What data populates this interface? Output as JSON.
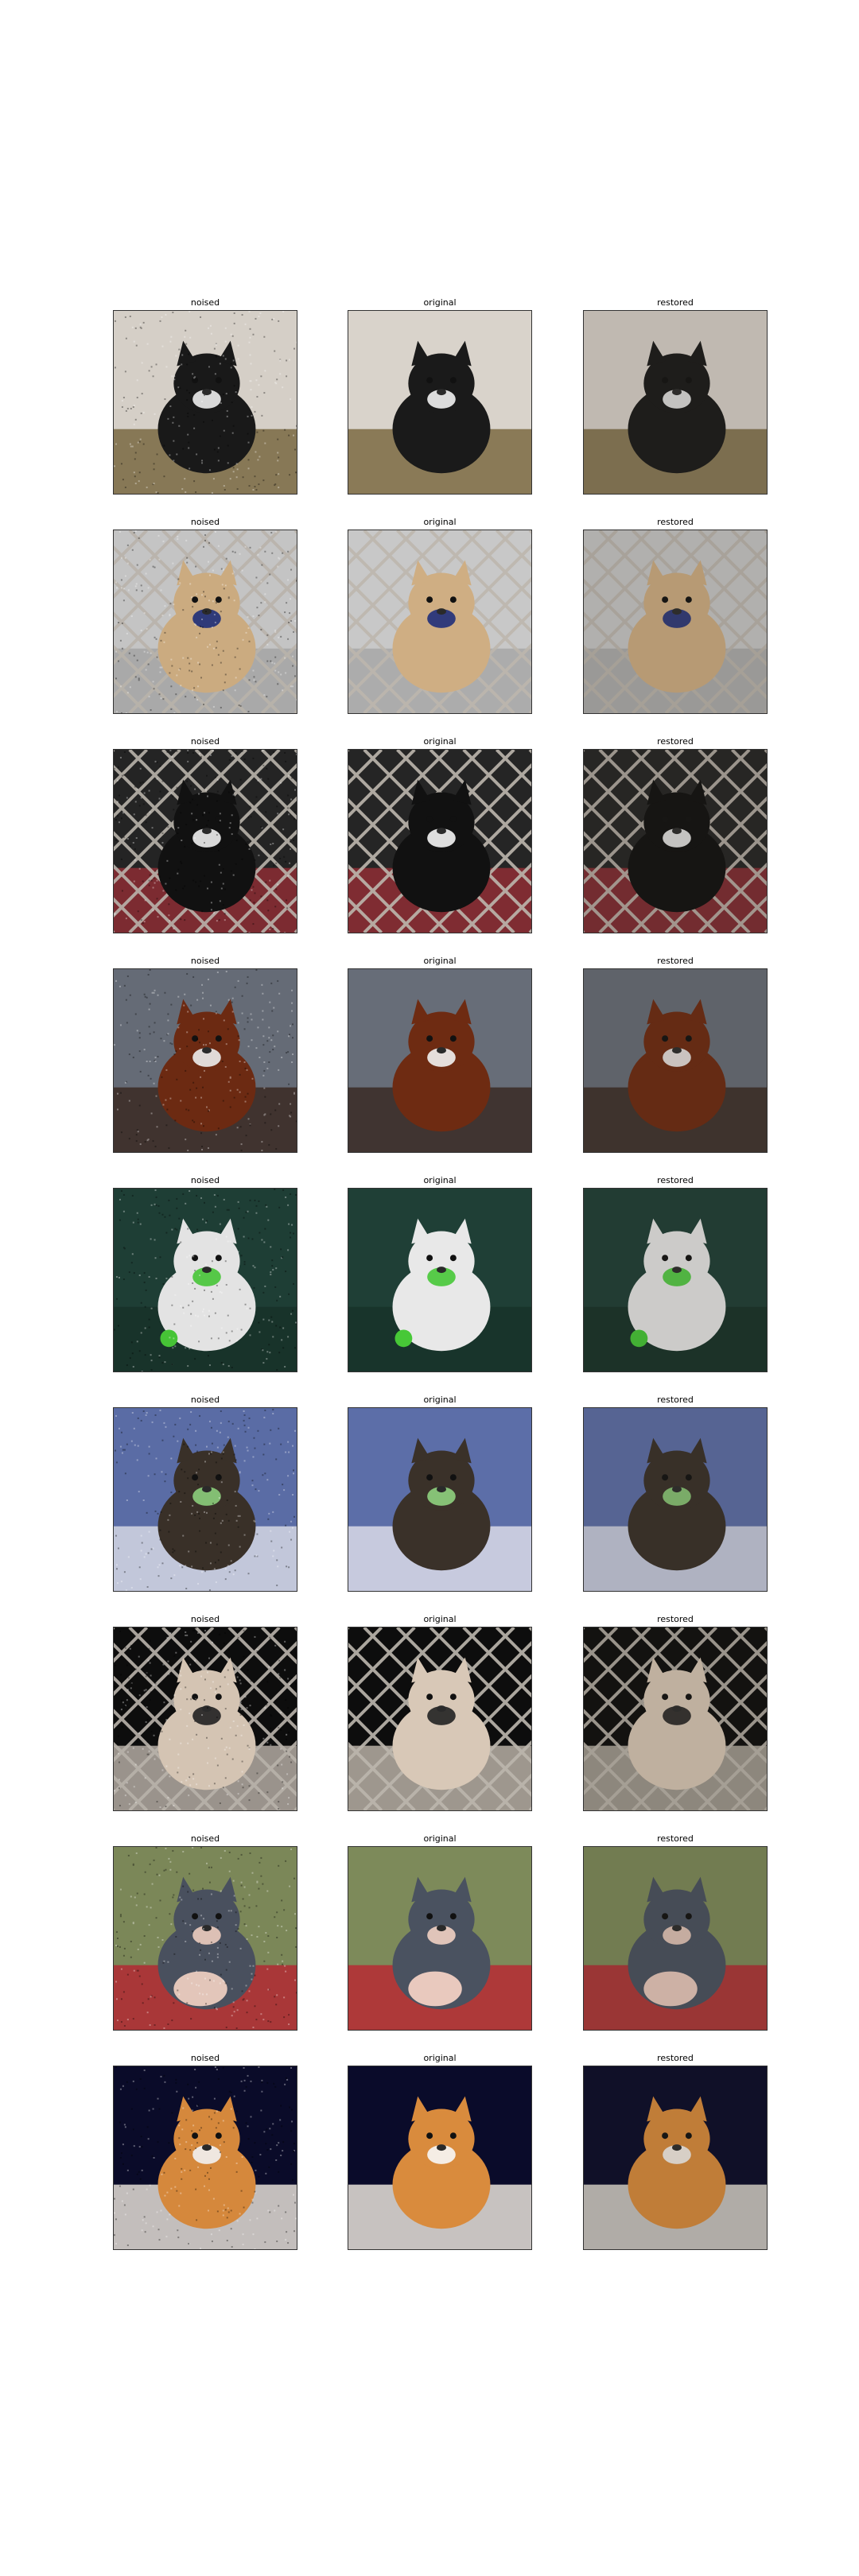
{
  "figure": {
    "rows": [
      {
        "subject": "boston-terrier-dog",
        "panels": [
          {
            "title": "noised",
            "variant": "noised"
          },
          {
            "title": "original",
            "variant": "original"
          },
          {
            "title": "restored",
            "variant": "restored"
          }
        ],
        "colors": {
          "bg": "#d9d3cb",
          "mid": "#7b6a43",
          "main": "#1a1a1a",
          "accent": "#f2f2f2"
        }
      },
      {
        "subject": "dog-behind-chain-fence",
        "panels": [
          {
            "title": "noised",
            "variant": "noised"
          },
          {
            "title": "original",
            "variant": "original"
          },
          {
            "title": "restored",
            "variant": "restored"
          }
        ],
        "colors": {
          "bg": "#c8c8c8",
          "mid": "#a7a7a7",
          "main": "#cfae83",
          "accent": "#1f2f7a"
        }
      },
      {
        "subject": "black-white-cat-in-cage",
        "panels": [
          {
            "title": "noised",
            "variant": "noised"
          },
          {
            "title": "original",
            "variant": "original"
          },
          {
            "title": "restored",
            "variant": "restored"
          }
        ],
        "colors": {
          "bg": "#252525",
          "mid": "#8f2e35",
          "main": "#111111",
          "accent": "#f5f5f5"
        }
      },
      {
        "subject": "brown-labrador-dog",
        "panels": [
          {
            "title": "noised",
            "variant": "noised"
          },
          {
            "title": "original",
            "variant": "original"
          },
          {
            "title": "restored",
            "variant": "restored"
          }
        ],
        "colors": {
          "bg": "#676d78",
          "mid": "#3a2a24",
          "main": "#6e2b12",
          "accent": "#f2f2f2"
        }
      },
      {
        "subject": "white-persian-cat",
        "panels": [
          {
            "title": "noised",
            "variant": "noised"
          },
          {
            "title": "original",
            "variant": "original"
          },
          {
            "title": "restored",
            "variant": "restored"
          }
        ],
        "colors": {
          "bg": "#1f3f36",
          "mid": "#173229",
          "main": "#e8e8e8",
          "accent": "#47c837"
        }
      },
      {
        "subject": "tabby-cat-in-bed",
        "panels": [
          {
            "title": "noised",
            "variant": "noised"
          },
          {
            "title": "original",
            "variant": "original"
          },
          {
            "title": "restored",
            "variant": "restored"
          }
        ],
        "colors": {
          "bg": "#5c6ea8",
          "mid": "#d9dbe8",
          "main": "#3a3129",
          "accent": "#8fd27e"
        }
      },
      {
        "subject": "dog-nose-through-fence",
        "panels": [
          {
            "title": "noised",
            "variant": "noised"
          },
          {
            "title": "original",
            "variant": "original"
          },
          {
            "title": "restored",
            "variant": "restored"
          }
        ],
        "colors": {
          "bg": "#0d0d0d",
          "mid": "#b8b0a6",
          "main": "#d8c8b7",
          "accent": "#222222"
        }
      },
      {
        "subject": "chihuahua-held-by-hands",
        "panels": [
          {
            "title": "noised",
            "variant": "noised"
          },
          {
            "title": "original",
            "variant": "original"
          },
          {
            "title": "restored",
            "variant": "restored"
          }
        ],
        "colors": {
          "bg": "#7d8a5a",
          "mid": "#b62a34",
          "main": "#4a5260",
          "accent": "#f1d0c3"
        }
      },
      {
        "subject": "orange-kitten",
        "panels": [
          {
            "title": "noised",
            "variant": "noised"
          },
          {
            "title": "original",
            "variant": "original"
          },
          {
            "title": "restored",
            "variant": "restored"
          }
        ],
        "colors": {
          "bg": "#0a0b2a",
          "mid": "#e9e3da",
          "main": "#d98b3d",
          "accent": "#f7f7f7"
        }
      }
    ]
  }
}
